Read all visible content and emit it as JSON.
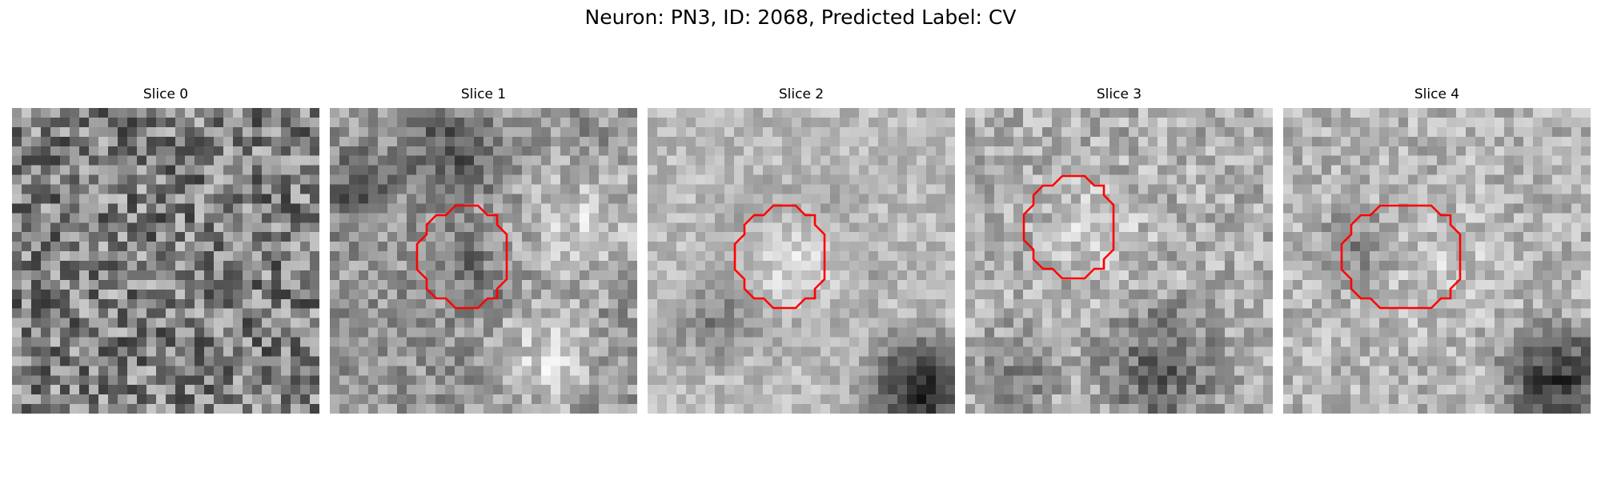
{
  "figure": {
    "title": "Neuron: PN3, ID: 2068, Predicted Label: CV"
  },
  "slices": [
    {
      "label": "Slice 0",
      "roi": false
    },
    {
      "label": "Slice 1",
      "roi": true
    },
    {
      "label": "Slice 2",
      "roi": true
    },
    {
      "label": "Slice 3",
      "roi": true
    },
    {
      "label": "Slice 4",
      "roi": true
    }
  ],
  "colors": {
    "roi_outline": "#ff0000",
    "colormap": "grayscale"
  }
}
